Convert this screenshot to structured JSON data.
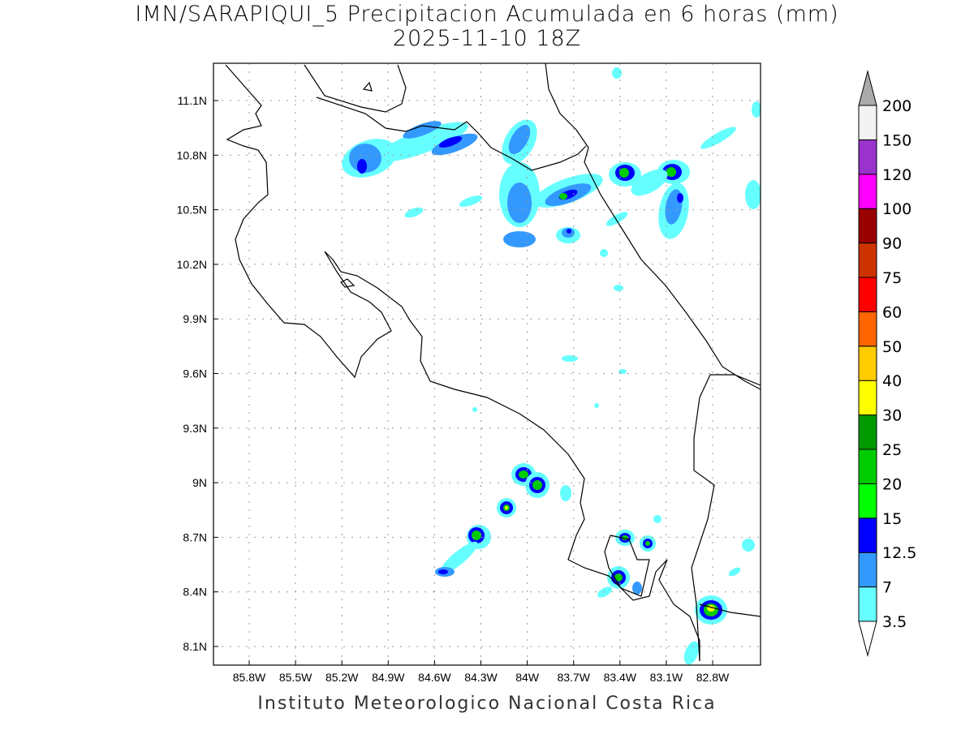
{
  "title": "IMN/SARAPIQUI_5 Precipitacion Acumulada en 6 horas (mm)",
  "subtitle": "2025-11-10 18Z",
  "footer": "Instituto Meteorologico Nacional Costa Rica",
  "axes": {
    "lon_labels": [
      "85.8W",
      "85.5W",
      "85.2W",
      "84.9W",
      "84.6W",
      "84.3W",
      "84W",
      "83.7W",
      "83.4W",
      "83.1W",
      "82.8W"
    ],
    "lat_labels": [
      "11.1N",
      "10.8N",
      "10.5N",
      "10.2N",
      "9.9N",
      "9.6N",
      "9.3N",
      "9N",
      "8.7N",
      "8.4N",
      "8.1N"
    ]
  },
  "colorbar": {
    "levels": [
      "3.5",
      "7",
      "12.5",
      "15",
      "20",
      "25",
      "30",
      "40",
      "50",
      "60",
      "75",
      "90",
      "100",
      "120",
      "150",
      "200"
    ],
    "colors": [
      "#66ffff",
      "#3399ff",
      "#0000ff",
      "#00ff00",
      "#00cc00",
      "#009900",
      "#ffff00",
      "#ffcc00",
      "#ff6600",
      "#ff0000",
      "#cc3300",
      "#990000",
      "#ff00ff",
      "#9933cc",
      "#f2f2f2"
    ],
    "over_color": "#aaaaaa",
    "under_color": "#ffffff"
  }
}
